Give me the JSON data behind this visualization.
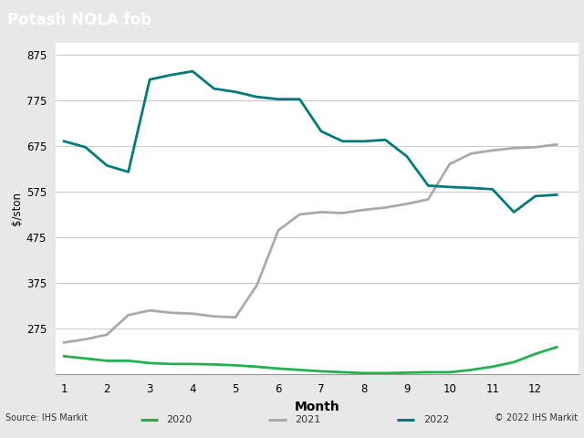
{
  "title": "Potash NOLA fob",
  "xlabel": "Month",
  "ylabel": "$/ston",
  "title_bg_color": "#808080",
  "title_text_color": "#ffffff",
  "background_color": "#e8e8e8",
  "plot_bg_color": "#ffffff",
  "months_2020": [
    1,
    1.5,
    2,
    2.5,
    3,
    3.5,
    4,
    4.5,
    5,
    5.5,
    6,
    6.5,
    7,
    7.5,
    8,
    8.5,
    9,
    9.5,
    10,
    10.5,
    11,
    11.5,
    12,
    12.5
  ],
  "months_2021": [
    1,
    1.5,
    2,
    2.5,
    3,
    3.5,
    4,
    4.5,
    5,
    5.5,
    6,
    6.5,
    7,
    7.5,
    8,
    8.5,
    9,
    9.5,
    10,
    10.5,
    11,
    11.5,
    12,
    12.5
  ],
  "months_2022": [
    1,
    1.5,
    2,
    2.5,
    3,
    3.5,
    4,
    4.5,
    5,
    5.5,
    6,
    6.5,
    7,
    7.5,
    8,
    8.5,
    9,
    9.5,
    10,
    10.5,
    11,
    11.5,
    12,
    12.5
  ],
  "data_2020": [
    215,
    210,
    205,
    205,
    200,
    198,
    198,
    197,
    195,
    192,
    188,
    185,
    182,
    180,
    178,
    178,
    179,
    180,
    180,
    185,
    192,
    202,
    220,
    235
  ],
  "data_2021": [
    245,
    252,
    262,
    305,
    315,
    310,
    308,
    302,
    300,
    370,
    490,
    525,
    530,
    528,
    535,
    540,
    548,
    558,
    635,
    658,
    665,
    670,
    672,
    678
  ],
  "data_2022": [
    685,
    672,
    632,
    618,
    820,
    830,
    838,
    800,
    793,
    782,
    777,
    777,
    707,
    685,
    685,
    688,
    652,
    588,
    585,
    583,
    580,
    530,
    565,
    568
  ],
  "color_2020": "#22b14c",
  "color_2021": "#aaaaaa",
  "color_2022": "#007b7b",
  "ylim": [
    175,
    900
  ],
  "yticks": [
    175,
    275,
    375,
    475,
    575,
    675,
    775,
    875
  ],
  "ytick_labels": [
    "",
    "275",
    "375",
    "475",
    "575",
    "675",
    "775",
    "875"
  ],
  "xticks": [
    1,
    2,
    3,
    4,
    5,
    6,
    7,
    8,
    9,
    10,
    11,
    12
  ],
  "xlim": [
    0.8,
    13.0
  ],
  "source_text": "Source: IHS Markit",
  "copyright_text": "© 2022 IHS Markit",
  "legend_entries": [
    "2020",
    "2021",
    "2022"
  ],
  "linewidth": 2.0
}
